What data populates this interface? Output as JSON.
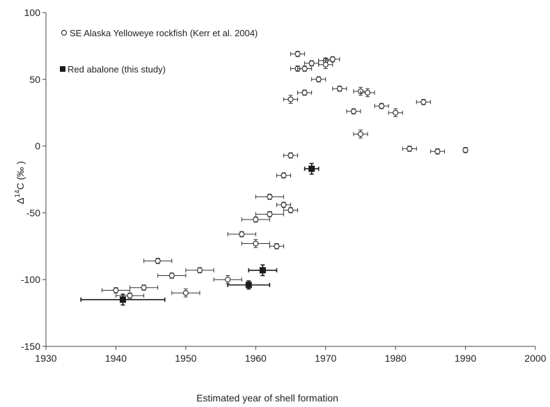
{
  "chart_data": {
    "type": "scatter",
    "xlabel": "Estimated year of shell formation",
    "ylabel": {
      "prefix": "Δ",
      "sup": "14",
      "rest": "C  (‰ )"
    },
    "xlim": [
      1930,
      2000
    ],
    "ylim": [
      -150,
      100
    ],
    "x_ticks": [
      "1930",
      "1940",
      "1950",
      "1960",
      "1970",
      "1980",
      "1990",
      "2000"
    ],
    "y_ticks": [
      "100",
      "50",
      "0",
      "-50",
      "-100",
      "-150"
    ],
    "grid": false,
    "legend_placement": "top-left",
    "series": [
      {
        "name": "SE Alaska Yelloweye rockfish (Kerr et al. 2004)",
        "marker": "open-circle",
        "color": "#333333",
        "points": [
          {
            "x": 1966,
            "y": 69,
            "xerr": 1,
            "yerr": 2
          },
          {
            "x": 1966,
            "y": 58,
            "xerr": 1,
            "yerr": 2
          },
          {
            "x": 1967,
            "y": 58,
            "xerr": 1,
            "yerr": 2
          },
          {
            "x": 1968,
            "y": 62,
            "xerr": 1,
            "yerr": 2
          },
          {
            "x": 1970,
            "y": 64,
            "xerr": 1,
            "yerr": 2
          },
          {
            "x": 1970,
            "y": 61,
            "xerr": 1,
            "yerr": 3
          },
          {
            "x": 1971,
            "y": 65,
            "xerr": 1,
            "yerr": 2
          },
          {
            "x": 1969,
            "y": 50,
            "xerr": 1,
            "yerr": 2
          },
          {
            "x": 1967,
            "y": 40,
            "xerr": 1,
            "yerr": 2
          },
          {
            "x": 1965,
            "y": 35,
            "xerr": 1,
            "yerr": 3
          },
          {
            "x": 1972,
            "y": 43,
            "xerr": 1,
            "yerr": 2
          },
          {
            "x": 1975,
            "y": 41,
            "xerr": 1,
            "yerr": 3
          },
          {
            "x": 1976,
            "y": 40,
            "xerr": 1,
            "yerr": 3
          },
          {
            "x": 1974,
            "y": 26,
            "xerr": 1,
            "yerr": 2
          },
          {
            "x": 1978,
            "y": 30,
            "xerr": 1,
            "yerr": 2
          },
          {
            "x": 1980,
            "y": 25,
            "xerr": 1,
            "yerr": 3
          },
          {
            "x": 1984,
            "y": 33,
            "xerr": 1,
            "yerr": 2
          },
          {
            "x": 1975,
            "y": 9,
            "xerr": 1,
            "yerr": 3
          },
          {
            "x": 1982,
            "y": -2,
            "xerr": 1,
            "yerr": 2
          },
          {
            "x": 1986,
            "y": -4,
            "xerr": 1,
            "yerr": 2
          },
          {
            "x": 1990,
            "y": -3,
            "xerr": 0,
            "yerr": 2
          },
          {
            "x": 1965,
            "y": -7,
            "xerr": 1,
            "yerr": 2
          },
          {
            "x": 1964,
            "y": -22,
            "xerr": 1,
            "yerr": 2
          },
          {
            "x": 1962,
            "y": -38,
            "xerr": 2,
            "yerr": 2
          },
          {
            "x": 1964,
            "y": -44,
            "xerr": 1,
            "yerr": 2
          },
          {
            "x": 1965,
            "y": -48,
            "xerr": 1,
            "yerr": 2
          },
          {
            "x": 1962,
            "y": -51,
            "xerr": 2,
            "yerr": 2
          },
          {
            "x": 1960,
            "y": -55,
            "xerr": 2,
            "yerr": 2
          },
          {
            "x": 1958,
            "y": -66,
            "xerr": 2,
            "yerr": 2
          },
          {
            "x": 1960,
            "y": -73,
            "xerr": 2,
            "yerr": 3
          },
          {
            "x": 1963,
            "y": -75,
            "xerr": 1,
            "yerr": 2
          },
          {
            "x": 1946,
            "y": -86,
            "xerr": 2,
            "yerr": 2
          },
          {
            "x": 1952,
            "y": -93,
            "xerr": 2,
            "yerr": 2
          },
          {
            "x": 1948,
            "y": -97,
            "xerr": 2,
            "yerr": 2
          },
          {
            "x": 1956,
            "y": -100,
            "xerr": 2,
            "yerr": 3
          },
          {
            "x": 1944,
            "y": -106,
            "xerr": 2,
            "yerr": 2
          },
          {
            "x": 1940,
            "y": -108,
            "xerr": 2,
            "yerr": 2
          },
          {
            "x": 1950,
            "y": -110,
            "xerr": 2,
            "yerr": 3
          },
          {
            "x": 1942,
            "y": -112,
            "xerr": 2,
            "yerr": 2
          }
        ]
      },
      {
        "name": "Red abalone (this study)",
        "marker": "filled-square",
        "color": "#1a1a1a",
        "points": [
          {
            "x": 1968,
            "y": -17,
            "xerr": 1,
            "yerr": 4
          },
          {
            "x": 1961,
            "y": -93,
            "xerr": 2,
            "yerr": 4
          },
          {
            "x": 1959,
            "y": -104,
            "xerr": 3,
            "yerr": 3
          },
          {
            "x": 1941,
            "y": -115,
            "xerr": 6,
            "yerr": 4
          }
        ]
      }
    ]
  }
}
